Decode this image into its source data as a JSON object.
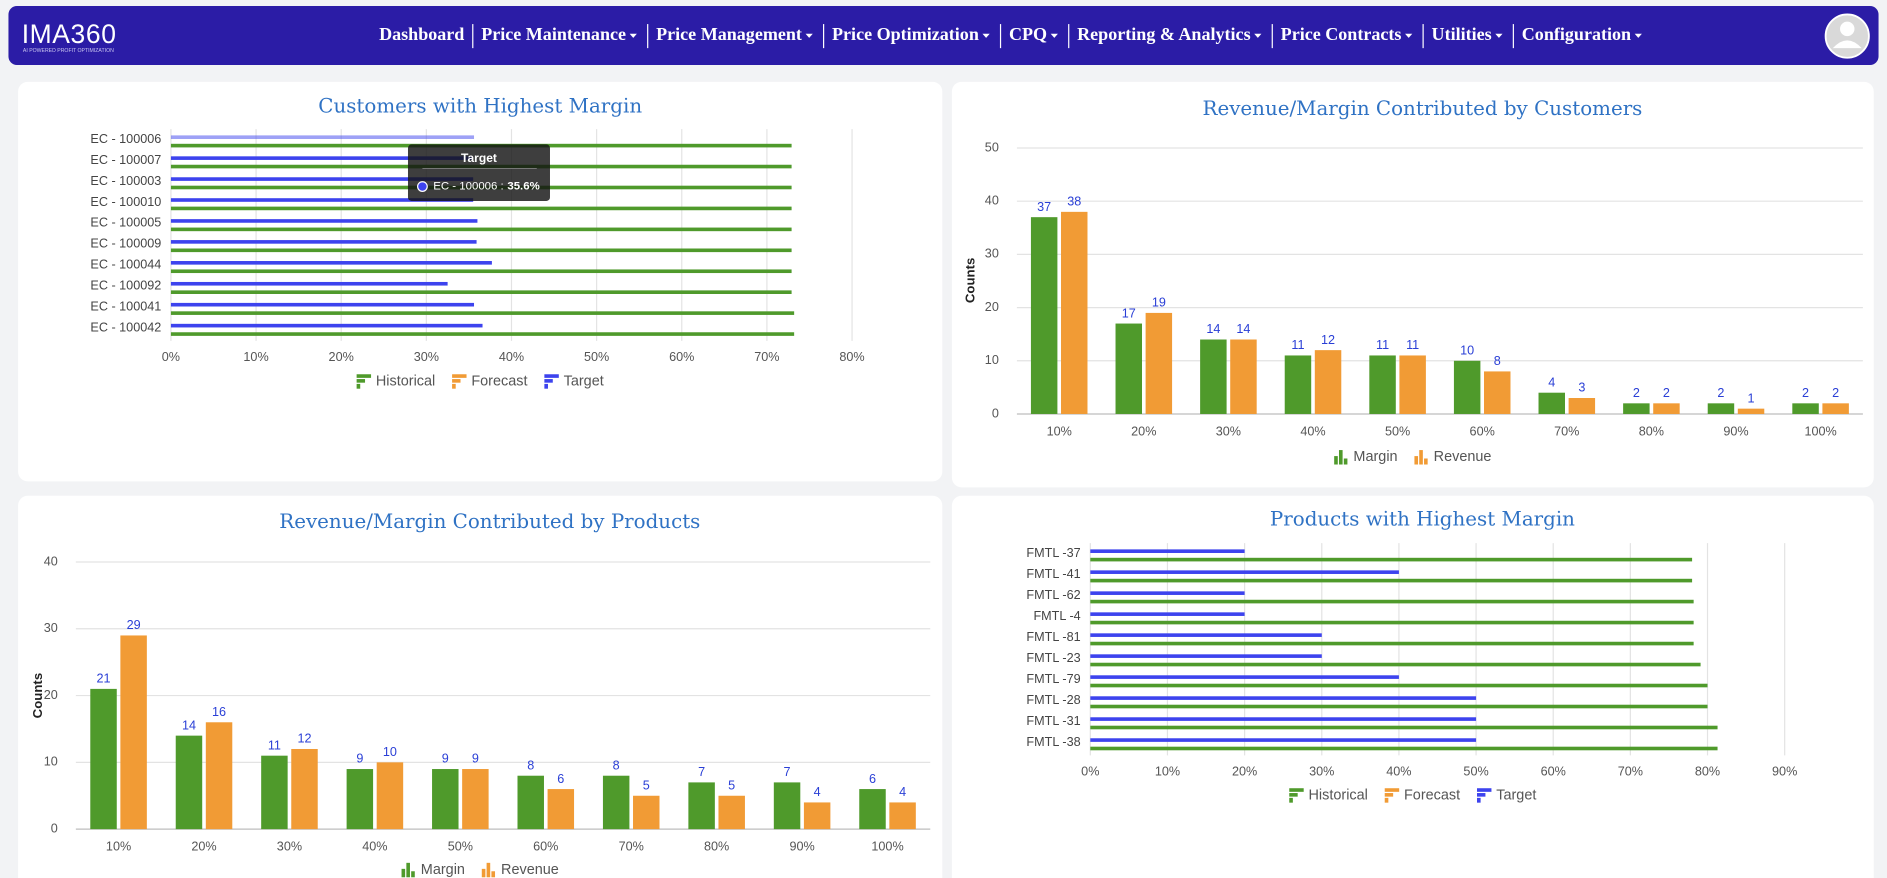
{
  "nav": {
    "logo": "IMA360",
    "tagline": "AI POWERED PROFIT OPTIMIZATION",
    "items": [
      {
        "label": "Dashboard",
        "dropdown": false
      },
      {
        "label": "Price Maintenance",
        "dropdown": true
      },
      {
        "label": "Price Management",
        "dropdown": true
      },
      {
        "label": "Price Optimization",
        "dropdown": true
      },
      {
        "label": "CPQ",
        "dropdown": true
      },
      {
        "label": "Reporting & Analytics",
        "dropdown": true
      },
      {
        "label": "Price Contracts",
        "dropdown": true
      },
      {
        "label": "Utilities",
        "dropdown": true
      },
      {
        "label": "Configuration",
        "dropdown": true
      }
    ]
  },
  "chart_data": [
    {
      "type": "barh",
      "title": "Customers with Highest Margin",
      "categories": [
        "EC - 100006",
        "EC - 100007",
        "EC - 100003",
        "EC - 100010",
        "EC - 100005",
        "EC - 100009",
        "EC - 100044",
        "EC - 100092",
        "EC - 100041",
        "EC - 100042"
      ],
      "series": [
        {
          "name": "Historical",
          "color": "#4f9a2b",
          "values": [
            72.9,
            72.9,
            72.9,
            72.9,
            72.9,
            72.9,
            72.9,
            72.9,
            73.2,
            73.2
          ]
        },
        {
          "name": "Forecast",
          "color": "#f19b35",
          "values": [
            null,
            null,
            null,
            null,
            null,
            null,
            null,
            null,
            null,
            null
          ]
        },
        {
          "name": "Target",
          "color": "#3d43ee",
          "values": [
            35.6,
            35.5,
            35.5,
            35.5,
            36.0,
            35.9,
            37.7,
            32.5,
            35.6,
            36.6
          ]
        }
      ],
      "xlim": [
        0,
        80
      ],
      "xticks": [
        {
          "value": 0,
          "label": "0%"
        },
        {
          "value": 10,
          "label": "10%"
        },
        {
          "value": 20,
          "label": "20%"
        },
        {
          "value": 30,
          "label": "30%"
        },
        {
          "value": 40,
          "label": "40%"
        },
        {
          "value": 50,
          "label": "50%"
        },
        {
          "value": 60,
          "label": "60%"
        },
        {
          "value": 70,
          "label": "70%"
        },
        {
          "value": 80,
          "label": "80%"
        }
      ],
      "grid": true,
      "legend": "bottom",
      "tooltip": {
        "title": "Target",
        "series_label": "EC - 100006 :",
        "value_label": "35.6%"
      }
    },
    {
      "type": "bar",
      "title": "Revenue/Margin Contributed by Customers",
      "categories": [
        "10%",
        "20%",
        "30%",
        "40%",
        "50%",
        "60%",
        "70%",
        "80%",
        "90%",
        "100%"
      ],
      "series": [
        {
          "name": "Margin",
          "color": "#4f9a2b",
          "values": [
            37,
            17,
            14,
            11,
            11,
            10,
            4,
            2,
            2,
            2
          ]
        },
        {
          "name": "Revenue",
          "color": "#f19b35",
          "values": [
            38,
            19,
            14,
            12,
            11,
            8,
            3,
            2,
            1,
            2
          ]
        }
      ],
      "y_label": "Counts",
      "ylim": [
        0,
        50
      ],
      "yticks": [
        0,
        10,
        20,
        30,
        40,
        50
      ],
      "grid": true,
      "legend": "bottom",
      "data_labels": true
    },
    {
      "type": "bar",
      "title": "Revenue/Margin Contributed by Products",
      "categories": [
        "10%",
        "20%",
        "30%",
        "40%",
        "50%",
        "60%",
        "70%",
        "80%",
        "90%",
        "100%"
      ],
      "series": [
        {
          "name": "Margin",
          "color": "#4f9a2b",
          "values": [
            21,
            14,
            11,
            9,
            9,
            8,
            8,
            7,
            7,
            6
          ]
        },
        {
          "name": "Revenue",
          "color": "#f19b35",
          "values": [
            29,
            16,
            12,
            10,
            9,
            6,
            5,
            5,
            4,
            4
          ]
        }
      ],
      "y_label": "Counts",
      "ylim": [
        0,
        40
      ],
      "yticks": [
        0,
        10,
        20,
        30,
        40
      ],
      "grid": true,
      "legend": "bottom",
      "data_labels": true
    },
    {
      "type": "barh",
      "title": "Products with Highest Margin",
      "categories": [
        "FMTL -37",
        "FMTL -41",
        "FMTL -62",
        "FMTL -4",
        "FMTL -81",
        "FMTL -23",
        "FMTL -79",
        "FMTL -28",
        "FMTL -31",
        "FMTL -38"
      ],
      "series": [
        {
          "name": "Historical",
          "color": "#4f9a2b",
          "values": [
            78,
            78,
            78.2,
            78.2,
            78.2,
            79.1,
            80,
            80,
            81.3,
            81.3
          ]
        },
        {
          "name": "Forecast",
          "color": "#f19b35",
          "values": [
            null,
            null,
            null,
            null,
            null,
            null,
            null,
            null,
            null,
            null
          ]
        },
        {
          "name": "Target",
          "color": "#3d43ee",
          "values": [
            20,
            40,
            20,
            20,
            30,
            30,
            40,
            50,
            50,
            50
          ]
        }
      ],
      "xlim": [
        0,
        90
      ],
      "xticks": [
        {
          "value": 0,
          "label": "0%"
        },
        {
          "value": 10,
          "label": "10%"
        },
        {
          "value": 20,
          "label": "20%"
        },
        {
          "value": 30,
          "label": "30%"
        },
        {
          "value": 40,
          "label": "40%"
        },
        {
          "value": 50,
          "label": "50%"
        },
        {
          "value": 60,
          "label": "60%"
        },
        {
          "value": 70,
          "label": "70%"
        },
        {
          "value": 80,
          "label": "80%"
        },
        {
          "value": 90,
          "label": "90%"
        }
      ],
      "grid": true,
      "legend": "bottom"
    }
  ]
}
